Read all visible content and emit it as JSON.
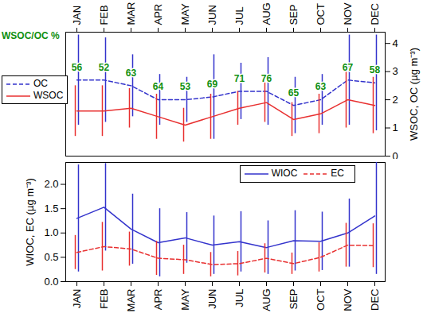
{
  "chart_data": [
    {
      "type": "line",
      "categories": [
        "JAN",
        "FEB",
        "MAR",
        "APR",
        "MAY",
        "JUN",
        "JUL",
        "AUG",
        "SEP",
        "OCT",
        "NOV",
        "DEC"
      ],
      "y2label": "WSOC, OC (µg m⁻³)",
      "y2lim": [
        0,
        4.4
      ],
      "y2ticks": [
        0,
        1,
        2,
        3,
        4
      ],
      "legend": "left",
      "series": [
        {
          "name": "OC",
          "color": "#3333cc",
          "line_style": "dashed",
          "axis": "y2",
          "values": [
            2.7,
            2.7,
            2.5,
            2.0,
            2.0,
            2.1,
            2.3,
            2.3,
            1.8,
            2.0,
            2.7,
            2.6
          ],
          "error": [
            1.6,
            1.5,
            1.1,
            0.9,
            0.8,
            1.5,
            1.0,
            1.2,
            1.0,
            0.9,
            1.6,
            1.7
          ]
        },
        {
          "name": "WSOC",
          "color": "#e83030",
          "line_style": "solid",
          "axis": "y2",
          "values": [
            1.6,
            1.6,
            1.7,
            1.4,
            1.1,
            1.4,
            1.7,
            1.9,
            1.3,
            1.5,
            2.0,
            1.8
          ],
          "error": [
            0.9,
            0.9,
            0.7,
            0.8,
            0.6,
            0.8,
            0.6,
            0.7,
            0.6,
            0.7,
            1.0,
            1.0
          ]
        }
      ],
      "annotations": {
        "title": "WSOC/OC %",
        "color": "#109010",
        "values": [
          56,
          52,
          63,
          64,
          53,
          69,
          71,
          76,
          65,
          63,
          67,
          58
        ]
      }
    },
    {
      "type": "line",
      "categories": [
        "JAN",
        "FEB",
        "MAR",
        "APR",
        "MAY",
        "JUN",
        "JUL",
        "AUG",
        "SEP",
        "OCT",
        "NOV",
        "DEC"
      ],
      "ylabel": "WIOC, EC (µg m⁻³)",
      "ylim": [
        0,
        2.45
      ],
      "yticks": [
        {
          "value": 0,
          "label": "0.0"
        },
        {
          "value": 0.5,
          "label": "0.5"
        },
        {
          "value": 1,
          "label": "1.0"
        },
        {
          "value": 1.5,
          "label": "1.5"
        },
        {
          "value": 2,
          "label": "2.0"
        }
      ],
      "legend": "upper right",
      "series": [
        {
          "name": "WIOC",
          "color": "#3333cc",
          "line_style": "solid",
          "values": [
            1.3,
            1.53,
            1.08,
            0.8,
            0.9,
            0.75,
            0.82,
            0.7,
            0.84,
            0.83,
            1.0,
            1.35
          ],
          "error": [
            1.1,
            0.9,
            0.72,
            0.7,
            0.52,
            0.6,
            0.62,
            0.55,
            0.62,
            0.6,
            0.7,
            1.2
          ]
        },
        {
          "name": "EC",
          "color": "#e83030",
          "line_style": "dashed",
          "values": [
            0.6,
            0.72,
            0.67,
            0.48,
            0.45,
            0.35,
            0.37,
            0.48,
            0.37,
            0.5,
            0.75,
            0.74
          ],
          "error": [
            0.35,
            0.5,
            0.35,
            0.35,
            0.3,
            0.25,
            0.25,
            0.3,
            0.22,
            0.3,
            0.45,
            0.45
          ]
        }
      ]
    }
  ]
}
